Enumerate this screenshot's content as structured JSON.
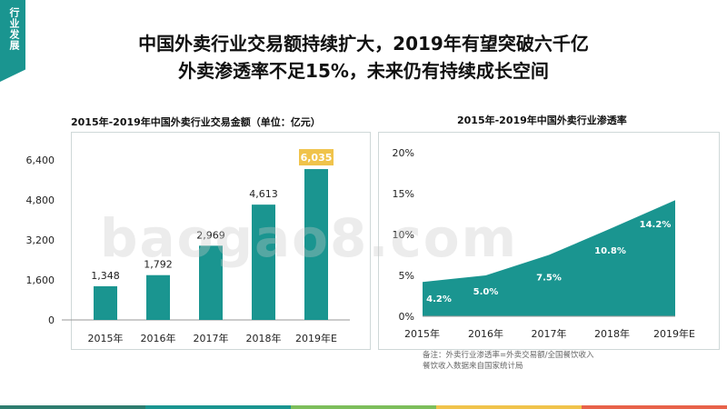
{
  "side_tag": "行业发展",
  "headline": {
    "line1": "中国外卖行业交易额持续扩大，2019年有望突破六千亿",
    "line2": "外卖渗透率不足15%，未来仍有持续成长空间"
  },
  "watermark": "baogao8.com",
  "note": {
    "line1": "备注：外卖行业渗透率=外卖交易额/全国餐饮收入",
    "line2": "餐饮收入数据来自国家统计局"
  },
  "colors": {
    "primary": "#1a9590",
    "highlight": "#f0c34b",
    "bar_bottom": [
      "#2e7d6f",
      "#1a9590",
      "#7dbe5b",
      "#f0c34b",
      "#e8624a"
    ]
  },
  "chart_data": [
    {
      "type": "bar",
      "title": "2015年-2019年中国外卖行业交易金额（单位：亿元）",
      "categories": [
        "2015年",
        "2016年",
        "2017年",
        "2018年",
        "2019年E"
      ],
      "values": [
        1348,
        1792,
        2969,
        4613,
        6035
      ],
      "value_labels": [
        "1,348",
        "1,792",
        "2,969",
        "4,613",
        "6,035"
      ],
      "yticks": [
        0,
        1600,
        3200,
        4800,
        6400
      ],
      "ytick_labels": [
        "0",
        "1,600",
        "3,200",
        "4,800",
        "6,400"
      ],
      "ylim": [
        0,
        6400
      ],
      "highlight_index": 4,
      "grid": false
    },
    {
      "type": "area",
      "title": "2015年-2019年中国外卖行业渗透率",
      "categories": [
        "2015年",
        "2016年",
        "2017年",
        "2018年",
        "2019年E"
      ],
      "values": [
        4.2,
        5.0,
        7.5,
        10.8,
        14.2
      ],
      "value_labels": [
        "4.2%",
        "5.0%",
        "7.5%",
        "10.8%",
        "14.2%"
      ],
      "yticks": [
        0,
        5,
        10,
        15,
        20
      ],
      "ytick_labels": [
        "0%",
        "5%",
        "10%",
        "15%",
        "20%"
      ],
      "ylim": [
        0,
        20
      ],
      "grid": false
    }
  ]
}
